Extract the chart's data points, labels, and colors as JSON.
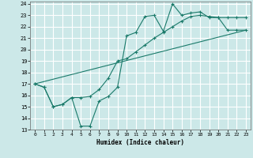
{
  "xlabel": "Humidex (Indice chaleur)",
  "bg_color": "#cce8e8",
  "grid_color": "#ffffff",
  "line_color": "#1a7a6a",
  "xlim": [
    -0.5,
    23.5
  ],
  "ylim": [
    13,
    24.2
  ],
  "xticks": [
    0,
    1,
    2,
    3,
    4,
    5,
    6,
    7,
    8,
    9,
    10,
    11,
    12,
    13,
    14,
    15,
    16,
    17,
    18,
    19,
    20,
    21,
    22,
    23
  ],
  "yticks": [
    13,
    14,
    15,
    16,
    17,
    18,
    19,
    20,
    21,
    22,
    23,
    24
  ],
  "line1_x": [
    0,
    1,
    2,
    3,
    4,
    5,
    6,
    7,
    8,
    9,
    10,
    11,
    12,
    13,
    14,
    15,
    16,
    17,
    18,
    19,
    20,
    21,
    22,
    23
  ],
  "line1_y": [
    17,
    16.7,
    15.0,
    15.2,
    15.8,
    13.3,
    13.3,
    15.5,
    15.9,
    16.7,
    21.2,
    21.5,
    22.9,
    23.0,
    21.6,
    24.0,
    23.0,
    23.2,
    23.3,
    22.8,
    22.8,
    22.8,
    22.8,
    22.8
  ],
  "line2_x": [
    0,
    1,
    2,
    3,
    4,
    5,
    6,
    7,
    8,
    9,
    10,
    11,
    12,
    13,
    14,
    15,
    16,
    17,
    18,
    19,
    20,
    21,
    22,
    23
  ],
  "line2_y": [
    17,
    16.7,
    15.0,
    15.2,
    15.8,
    15.8,
    15.9,
    16.5,
    17.5,
    19.0,
    19.2,
    19.8,
    20.4,
    21.0,
    21.5,
    22.0,
    22.5,
    22.9,
    23.0,
    22.9,
    22.8,
    21.7,
    21.7,
    21.7
  ],
  "line3_x": [
    0,
    23
  ],
  "line3_y": [
    17,
    21.7
  ]
}
